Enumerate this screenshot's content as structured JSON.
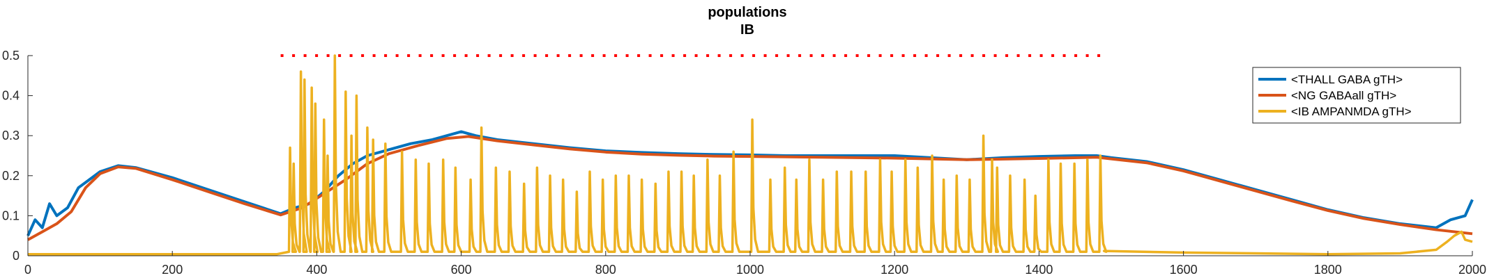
{
  "chart_data": {
    "type": "line",
    "title": "populations",
    "subtitle": "IB",
    "xlabel": "",
    "ylabel": "",
    "xlim": [
      0,
      2000
    ],
    "ylim": [
      0,
      0.5
    ],
    "x_ticks": [
      0,
      200,
      400,
      600,
      800,
      1000,
      1200,
      1400,
      1600,
      1800,
      2000
    ],
    "y_ticks": [
      0,
      0.1,
      0.2,
      0.3,
      0.4,
      0.5
    ],
    "y_tick_labels": [
      "0",
      "0.1",
      "0.2",
      "0.3",
      "0.4",
      "0.5"
    ],
    "grid": false,
    "legend_position": "top-right",
    "series": [
      {
        "name": "<THALL GABA gTH>",
        "color": "#0072BD",
        "points": [
          [
            0,
            0.05
          ],
          [
            10,
            0.09
          ],
          [
            20,
            0.07
          ],
          [
            30,
            0.13
          ],
          [
            40,
            0.1
          ],
          [
            55,
            0.12
          ],
          [
            70,
            0.17
          ],
          [
            100,
            0.21
          ],
          [
            125,
            0.225
          ],
          [
            150,
            0.22
          ],
          [
            200,
            0.195
          ],
          [
            250,
            0.165
          ],
          [
            300,
            0.135
          ],
          [
            350,
            0.105
          ],
          [
            370,
            0.12
          ],
          [
            390,
            0.13
          ],
          [
            410,
            0.16
          ],
          [
            430,
            0.2
          ],
          [
            450,
            0.23
          ],
          [
            470,
            0.25
          ],
          [
            500,
            0.265
          ],
          [
            530,
            0.28
          ],
          [
            560,
            0.29
          ],
          [
            580,
            0.3
          ],
          [
            600,
            0.31
          ],
          [
            620,
            0.3
          ],
          [
            650,
            0.29
          ],
          [
            700,
            0.28
          ],
          [
            750,
            0.27
          ],
          [
            800,
            0.262
          ],
          [
            850,
            0.258
          ],
          [
            900,
            0.255
          ],
          [
            950,
            0.253
          ],
          [
            1000,
            0.252
          ],
          [
            1050,
            0.25
          ],
          [
            1100,
            0.25
          ],
          [
            1150,
            0.25
          ],
          [
            1200,
            0.25
          ],
          [
            1250,
            0.245
          ],
          [
            1300,
            0.24
          ],
          [
            1350,
            0.245
          ],
          [
            1400,
            0.248
          ],
          [
            1450,
            0.25
          ],
          [
            1480,
            0.25
          ],
          [
            1500,
            0.245
          ],
          [
            1550,
            0.235
          ],
          [
            1600,
            0.215
          ],
          [
            1650,
            0.19
          ],
          [
            1700,
            0.165
          ],
          [
            1750,
            0.14
          ],
          [
            1800,
            0.115
          ],
          [
            1850,
            0.095
          ],
          [
            1900,
            0.08
          ],
          [
            1950,
            0.07
          ],
          [
            1970,
            0.09
          ],
          [
            1990,
            0.1
          ],
          [
            2000,
            0.14
          ]
        ]
      },
      {
        "name": "<NG GABAall gTH>",
        "color": "#D95319",
        "points": [
          [
            0,
            0.04
          ],
          [
            20,
            0.06
          ],
          [
            40,
            0.08
          ],
          [
            60,
            0.11
          ],
          [
            80,
            0.17
          ],
          [
            100,
            0.205
          ],
          [
            125,
            0.222
          ],
          [
            150,
            0.218
          ],
          [
            200,
            0.19
          ],
          [
            250,
            0.16
          ],
          [
            300,
            0.13
          ],
          [
            350,
            0.102
          ],
          [
            380,
            0.12
          ],
          [
            410,
            0.155
          ],
          [
            440,
            0.19
          ],
          [
            470,
            0.23
          ],
          [
            500,
            0.255
          ],
          [
            540,
            0.275
          ],
          [
            580,
            0.293
          ],
          [
            610,
            0.298
          ],
          [
            650,
            0.287
          ],
          [
            700,
            0.277
          ],
          [
            750,
            0.267
          ],
          [
            800,
            0.259
          ],
          [
            850,
            0.254
          ],
          [
            900,
            0.251
          ],
          [
            950,
            0.249
          ],
          [
            1000,
            0.248
          ],
          [
            1100,
            0.246
          ],
          [
            1200,
            0.244
          ],
          [
            1300,
            0.24
          ],
          [
            1400,
            0.243
          ],
          [
            1480,
            0.246
          ],
          [
            1500,
            0.242
          ],
          [
            1550,
            0.232
          ],
          [
            1600,
            0.212
          ],
          [
            1650,
            0.187
          ],
          [
            1700,
            0.162
          ],
          [
            1750,
            0.137
          ],
          [
            1800,
            0.113
          ],
          [
            1850,
            0.093
          ],
          [
            1900,
            0.078
          ],
          [
            1950,
            0.065
          ],
          [
            2000,
            0.055
          ]
        ]
      },
      {
        "name": "<IB AMPANMDA gTH>",
        "color": "#EDB120",
        "peaks": [
          [
            363,
            0.27
          ],
          [
            368,
            0.23
          ],
          [
            378,
            0.46
          ],
          [
            383,
            0.44
          ],
          [
            393,
            0.42
          ],
          [
            398,
            0.38
          ],
          [
            410,
            0.34
          ],
          [
            415,
            0.25
          ],
          [
            425,
            0.5
          ],
          [
            440,
            0.41
          ],
          [
            448,
            0.3
          ],
          [
            455,
            0.4
          ],
          [
            470,
            0.32
          ],
          [
            478,
            0.29
          ],
          [
            495,
            0.28
          ],
          [
            518,
            0.26
          ],
          [
            537,
            0.24
          ],
          [
            555,
            0.23
          ],
          [
            575,
            0.24
          ],
          [
            592,
            0.22
          ],
          [
            613,
            0.19
          ],
          [
            628,
            0.32
          ],
          [
            648,
            0.22
          ],
          [
            667,
            0.21
          ],
          [
            687,
            0.18
          ],
          [
            705,
            0.22
          ],
          [
            723,
            0.2
          ],
          [
            741,
            0.19
          ],
          [
            760,
            0.16
          ],
          [
            778,
            0.21
          ],
          [
            796,
            0.19
          ],
          [
            814,
            0.2
          ],
          [
            832,
            0.2
          ],
          [
            850,
            0.19
          ],
          [
            869,
            0.18
          ],
          [
            887,
            0.21
          ],
          [
            905,
            0.21
          ],
          [
            922,
            0.2
          ],
          [
            941,
            0.24
          ],
          [
            958,
            0.2
          ],
          [
            977,
            0.26
          ],
          [
            1003,
            0.34
          ],
          [
            1028,
            0.19
          ],
          [
            1048,
            0.22
          ],
          [
            1064,
            0.19
          ],
          [
            1082,
            0.24
          ],
          [
            1101,
            0.19
          ],
          [
            1120,
            0.21
          ],
          [
            1140,
            0.21
          ],
          [
            1160,
            0.21
          ],
          [
            1180,
            0.24
          ],
          [
            1196,
            0.21
          ],
          [
            1215,
            0.24
          ],
          [
            1232,
            0.22
          ],
          [
            1252,
            0.25
          ],
          [
            1268,
            0.19
          ],
          [
            1286,
            0.2
          ],
          [
            1304,
            0.19
          ],
          [
            1323,
            0.3
          ],
          [
            1335,
            0.24
          ],
          [
            1342,
            0.22
          ],
          [
            1360,
            0.2
          ],
          [
            1380,
            0.19
          ],
          [
            1395,
            0.15
          ],
          [
            1413,
            0.24
          ],
          [
            1430,
            0.23
          ],
          [
            1449,
            0.23
          ],
          [
            1467,
            0.24
          ],
          [
            1485,
            0.25
          ]
        ],
        "baseline": 0.004,
        "tail_points": [
          [
            1490,
            0.012
          ],
          [
            1600,
            0.008
          ],
          [
            1700,
            0.006
          ],
          [
            1800,
            0.004
          ],
          [
            1900,
            0.006
          ],
          [
            1950,
            0.015
          ],
          [
            1965,
            0.035
          ],
          [
            1975,
            0.05
          ],
          [
            1985,
            0.06
          ],
          [
            1990,
            0.04
          ],
          [
            2000,
            0.035
          ]
        ]
      }
    ],
    "reference_line": {
      "style": "dotted",
      "color": "#FF0000",
      "x_start": 350,
      "x_end": 1485,
      "y": 0.5
    }
  }
}
